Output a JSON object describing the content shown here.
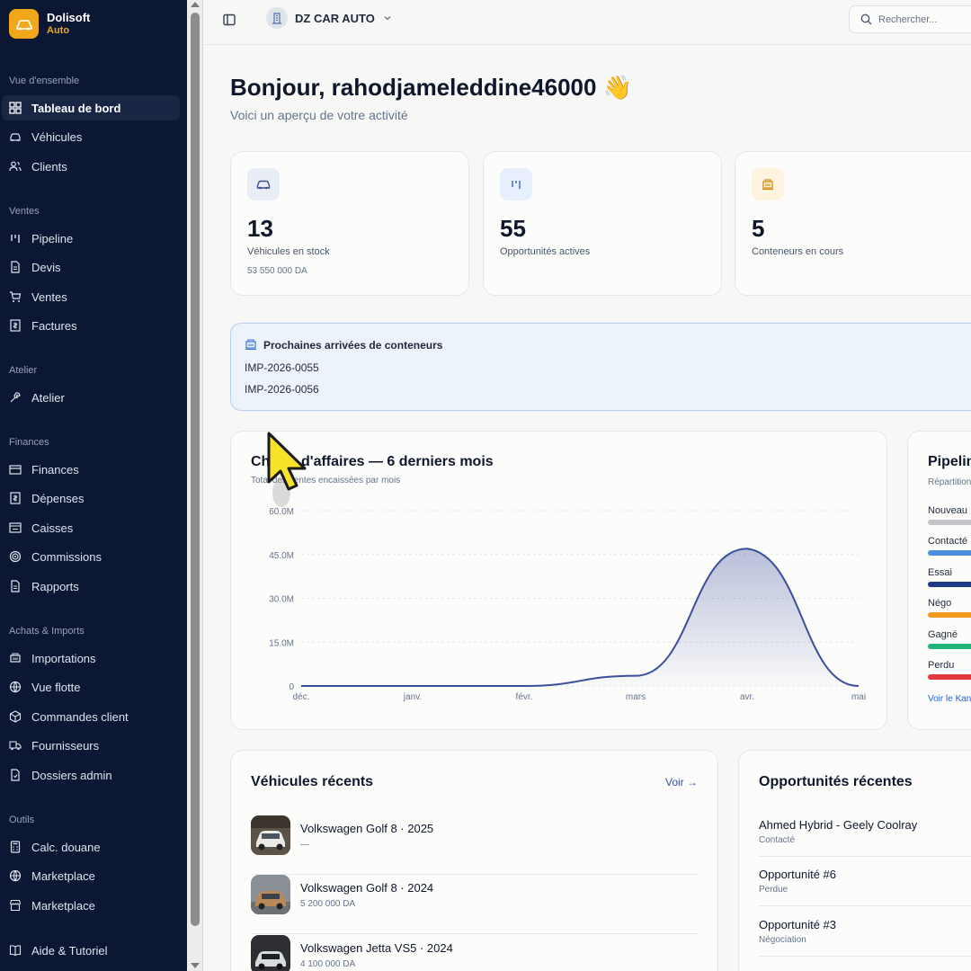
{
  "brand": {
    "name": "Dolisoft",
    "sub": "Auto"
  },
  "sidebar": {
    "sections": [
      {
        "title": "Vue d'ensemble",
        "items": [
          {
            "label": "Tableau de bord",
            "icon": "dashboard-icon",
            "active": true
          },
          {
            "label": "Véhicules",
            "icon": "car-icon"
          },
          {
            "label": "Clients",
            "icon": "users-icon"
          }
        ]
      },
      {
        "title": "Ventes",
        "items": [
          {
            "label": "Pipeline",
            "icon": "pipeline-icon"
          },
          {
            "label": "Devis",
            "icon": "document-icon"
          },
          {
            "label": "Ventes",
            "icon": "cart-icon"
          },
          {
            "label": "Factures",
            "icon": "invoice-icon"
          }
        ]
      },
      {
        "title": "Atelier",
        "items": [
          {
            "label": "Atelier",
            "icon": "wrench-icon"
          }
        ]
      },
      {
        "title": "Finances",
        "items": [
          {
            "label": "Finances",
            "icon": "wallet-icon"
          },
          {
            "label": "Dépenses",
            "icon": "receipt-icon"
          },
          {
            "label": "Caisses",
            "icon": "cashbox-icon"
          },
          {
            "label": "Commissions",
            "icon": "target-icon"
          },
          {
            "label": "Rapports",
            "icon": "report-icon"
          }
        ]
      },
      {
        "title": "Achats & Imports",
        "items": [
          {
            "label": "Importations",
            "icon": "container-icon"
          },
          {
            "label": "Vue flotte",
            "icon": "globe-icon"
          },
          {
            "label": "Commandes client",
            "icon": "package-icon"
          },
          {
            "label": "Fournisseurs",
            "icon": "truck-icon"
          },
          {
            "label": "Dossiers admin",
            "icon": "folder-icon"
          }
        ]
      },
      {
        "title": "Outils",
        "items": [
          {
            "label": "Calc. douane",
            "icon": "calculator-icon"
          },
          {
            "label": "Marketplace",
            "icon": "globe-icon"
          },
          {
            "label": "Marketplace",
            "icon": "store-icon"
          }
        ]
      }
    ],
    "footer": {
      "label": "Aide & Tutoriel",
      "icon": "book-icon"
    }
  },
  "topbar": {
    "company": "DZ CAR AUTO",
    "search_placeholder": "Rechercher..."
  },
  "main": {
    "greeting": "Bonjour, rahodjameleddine46000 👋",
    "subtitle": "Voici un aperçu de votre activité",
    "stats": [
      {
        "value": "13",
        "label": "Véhicules en stock",
        "sub": "53 550 000 DA",
        "icon": "car-icon",
        "color": "#e8edf6"
      },
      {
        "value": "55",
        "label": "Opportunités actives",
        "sub": "",
        "icon": "pipeline-icon",
        "color": "#e6effb"
      },
      {
        "value": "5",
        "label": "Conteneurs en cours",
        "sub": "",
        "icon": "container-icon",
        "color": "#fdf3de"
      }
    ],
    "arrivals": {
      "title": "Prochaines arrivées de conteneurs",
      "items": [
        "IMP-2026-0055",
        "IMP-2026-0056"
      ]
    },
    "revenue": {
      "title": "Chiffre d'affaires — 6 derniers mois",
      "subtitle": "Total des ventes encaissées par mois"
    },
    "pipeline": {
      "title": "Pipeline",
      "subtitle": "Répartition",
      "stages": [
        {
          "name": "Nouveau",
          "color": "#c2c4c7"
        },
        {
          "name": "Contacté",
          "color": "#4d8ee0"
        },
        {
          "name": "Essai",
          "color": "#1f3a8a"
        },
        {
          "name": "Négo",
          "color": "#f09a1e"
        },
        {
          "name": "Gagné",
          "color": "#1fb57a"
        },
        {
          "name": "Perdu",
          "color": "#e23a3a"
        }
      ],
      "link": "Voir le Kanban"
    },
    "recent_vehicles": {
      "title": "Véhicules récents",
      "link": "Voir →",
      "items": [
        {
          "name": "Volkswagen Golf 8 · 2025",
          "price": "—"
        },
        {
          "name": "Volkswagen Golf 8 · 2024",
          "price": "5 200 000 DA"
        },
        {
          "name": "Volkswagen Jetta VS5 · 2024",
          "price": "4 100 000 DA"
        }
      ]
    },
    "recent_opportunities": {
      "title": "Opportunités récentes",
      "items": [
        {
          "name": "Ahmed Hybrid - Geely Coolray",
          "status": "Contacté"
        },
        {
          "name": "Opportunité #6",
          "status": "Perdue"
        },
        {
          "name": "Opportunité #3",
          "status": "Négociation"
        }
      ]
    }
  },
  "chart_data": {
    "type": "area",
    "title": "Chiffre d'affaires — 6 derniers mois",
    "categories": [
      "déc.",
      "janv.",
      "févr.",
      "mars",
      "avr.",
      "mai"
    ],
    "values": [
      0,
      0,
      0,
      3500000,
      47000000,
      0
    ],
    "yticks": [
      "0",
      "15.0M",
      "30.0M",
      "45.0M",
      "60.0M"
    ],
    "ylim": [
      0,
      60000000
    ],
    "grid": true,
    "color": "#3b4f9a"
  }
}
